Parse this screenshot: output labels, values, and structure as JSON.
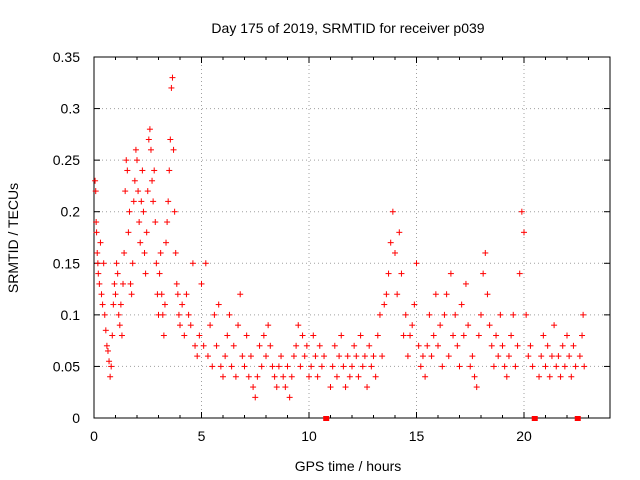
{
  "chart_data": {
    "type": "scatter",
    "title": "Day 175 of 2019, SRMTID for receiver p039",
    "xlabel": "GPS time / hours",
    "ylabel": "SRMTID / TECUs",
    "xlim": [
      0,
      24
    ],
    "ylim": [
      0,
      0.35
    ],
    "x_ticks": [
      0,
      5,
      10,
      15,
      20
    ],
    "y_ticks": [
      0,
      0.05,
      0.1,
      0.15,
      0.2,
      0.25,
      0.3,
      0.35
    ],
    "x_tick_labels": [
      "0",
      "5",
      "10",
      "15",
      "20"
    ],
    "y_tick_labels": [
      "0",
      "0.05",
      "0.1",
      "0.15",
      "0.2",
      "0.25",
      "0.3",
      "0.35"
    ],
    "grid": true,
    "marker": "plus",
    "series_color": "#ff0000",
    "gap_markers_x": [
      10.8,
      20.5,
      22.5
    ],
    "series": [
      {
        "name": "SRMTID",
        "points": [
          [
            0.05,
            0.23
          ],
          [
            0.08,
            0.22
          ],
          [
            0.1,
            0.19
          ],
          [
            0.12,
            0.18
          ],
          [
            0.15,
            0.16
          ],
          [
            0.18,
            0.15
          ],
          [
            0.2,
            0.14
          ],
          [
            0.25,
            0.13
          ],
          [
            0.3,
            0.17
          ],
          [
            0.35,
            0.12
          ],
          [
            0.4,
            0.11
          ],
          [
            0.45,
            0.15
          ],
          [
            0.5,
            0.1
          ],
          [
            0.55,
            0.085
          ],
          [
            0.6,
            0.07
          ],
          [
            0.65,
            0.065
          ],
          [
            0.7,
            0.055
          ],
          [
            0.75,
            0.04
          ],
          [
            0.8,
            0.05
          ],
          [
            0.85,
            0.08
          ],
          [
            0.9,
            0.11
          ],
          [
            0.95,
            0.13
          ],
          [
            1.0,
            0.12
          ],
          [
            1.05,
            0.15
          ],
          [
            1.1,
            0.14
          ],
          [
            1.15,
            0.1
          ],
          [
            1.2,
            0.09
          ],
          [
            1.25,
            0.11
          ],
          [
            1.3,
            0.08
          ],
          [
            1.35,
            0.13
          ],
          [
            1.4,
            0.16
          ],
          [
            1.45,
            0.22
          ],
          [
            1.5,
            0.25
          ],
          [
            1.55,
            0.24
          ],
          [
            1.6,
            0.18
          ],
          [
            1.65,
            0.2
          ],
          [
            1.7,
            0.13
          ],
          [
            1.75,
            0.12
          ],
          [
            1.8,
            0.15
          ],
          [
            1.85,
            0.21
          ],
          [
            1.9,
            0.23
          ],
          [
            1.95,
            0.26
          ],
          [
            2.0,
            0.25
          ],
          [
            2.05,
            0.22
          ],
          [
            2.1,
            0.19
          ],
          [
            2.15,
            0.17
          ],
          [
            2.2,
            0.21
          ],
          [
            2.25,
            0.24
          ],
          [
            2.3,
            0.2
          ],
          [
            2.35,
            0.16
          ],
          [
            2.4,
            0.14
          ],
          [
            2.45,
            0.18
          ],
          [
            2.5,
            0.22
          ],
          [
            2.55,
            0.27
          ],
          [
            2.6,
            0.28
          ],
          [
            2.65,
            0.26
          ],
          [
            2.7,
            0.23
          ],
          [
            2.75,
            0.21
          ],
          [
            2.8,
            0.24
          ],
          [
            2.85,
            0.19
          ],
          [
            2.9,
            0.15
          ],
          [
            2.95,
            0.12
          ],
          [
            3.0,
            0.1
          ],
          [
            3.05,
            0.14
          ],
          [
            3.1,
            0.16
          ],
          [
            3.15,
            0.12
          ],
          [
            3.2,
            0.1
          ],
          [
            3.25,
            0.08
          ],
          [
            3.3,
            0.11
          ],
          [
            3.35,
            0.17
          ],
          [
            3.4,
            0.19
          ],
          [
            3.45,
            0.21
          ],
          [
            3.5,
            0.24
          ],
          [
            3.55,
            0.27
          ],
          [
            3.6,
            0.32
          ],
          [
            3.65,
            0.33
          ],
          [
            3.7,
            0.26
          ],
          [
            3.75,
            0.2
          ],
          [
            3.8,
            0.16
          ],
          [
            3.85,
            0.13
          ],
          [
            3.9,
            0.12
          ],
          [
            3.95,
            0.1
          ],
          [
            4.0,
            0.09
          ],
          [
            4.1,
            0.11
          ],
          [
            4.2,
            0.08
          ],
          [
            4.3,
            0.12
          ],
          [
            4.4,
            0.1
          ],
          [
            4.5,
            0.09
          ],
          [
            4.6,
            0.15
          ],
          [
            4.7,
            0.07
          ],
          [
            4.8,
            0.06
          ],
          [
            4.9,
            0.08
          ],
          [
            5.0,
            0.13
          ],
          [
            5.1,
            0.07
          ],
          [
            5.2,
            0.15
          ],
          [
            5.3,
            0.06
          ],
          [
            5.4,
            0.09
          ],
          [
            5.5,
            0.05
          ],
          [
            5.6,
            0.1
          ],
          [
            5.7,
            0.07
          ],
          [
            5.8,
            0.11
          ],
          [
            5.9,
            0.05
          ],
          [
            6.0,
            0.04
          ],
          [
            6.1,
            0.06
          ],
          [
            6.2,
            0.08
          ],
          [
            6.3,
            0.1
          ],
          [
            6.4,
            0.05
          ],
          [
            6.5,
            0.07
          ],
          [
            6.6,
            0.04
          ],
          [
            6.7,
            0.09
          ],
          [
            6.8,
            0.12
          ],
          [
            6.9,
            0.06
          ],
          [
            7.0,
            0.05
          ],
          [
            7.1,
            0.08
          ],
          [
            7.2,
            0.04
          ],
          [
            7.3,
            0.06
          ],
          [
            7.4,
            0.03
          ],
          [
            7.5,
            0.02
          ],
          [
            7.6,
            0.04
          ],
          [
            7.7,
            0.07
          ],
          [
            7.8,
            0.05
          ],
          [
            7.9,
            0.08
          ],
          [
            8.0,
            0.06
          ],
          [
            8.1,
            0.09
          ],
          [
            8.2,
            0.07
          ],
          [
            8.3,
            0.05
          ],
          [
            8.4,
            0.04
          ],
          [
            8.5,
            0.03
          ],
          [
            8.6,
            0.05
          ],
          [
            8.7,
            0.06
          ],
          [
            8.8,
            0.04
          ],
          [
            8.9,
            0.03
          ],
          [
            9.0,
            0.05
          ],
          [
            9.1,
            0.02
          ],
          [
            9.2,
            0.04
          ],
          [
            9.3,
            0.06
          ],
          [
            9.4,
            0.07
          ],
          [
            9.5,
            0.09
          ],
          [
            9.6,
            0.05
          ],
          [
            9.7,
            0.08
          ],
          [
            9.8,
            0.06
          ],
          [
            9.9,
            0.07
          ],
          [
            10.0,
            0.04
          ],
          [
            10.1,
            0.05
          ],
          [
            10.2,
            0.08
          ],
          [
            10.3,
            0.06
          ],
          [
            10.4,
            0.04
          ],
          [
            10.5,
            0.07
          ],
          [
            10.6,
            0.05
          ],
          [
            10.7,
            0.06
          ],
          [
            11.0,
            0.03
          ],
          [
            11.1,
            0.05
          ],
          [
            11.2,
            0.07
          ],
          [
            11.3,
            0.04
          ],
          [
            11.4,
            0.06
          ],
          [
            11.5,
            0.08
          ],
          [
            11.6,
            0.05
          ],
          [
            11.7,
            0.03
          ],
          [
            11.8,
            0.06
          ],
          [
            11.9,
            0.04
          ],
          [
            12.0,
            0.05
          ],
          [
            12.1,
            0.07
          ],
          [
            12.2,
            0.06
          ],
          [
            12.3,
            0.04
          ],
          [
            12.4,
            0.08
          ],
          [
            12.5,
            0.05
          ],
          [
            12.6,
            0.06
          ],
          [
            12.7,
            0.03
          ],
          [
            12.8,
            0.07
          ],
          [
            12.9,
            0.05
          ],
          [
            13.0,
            0.06
          ],
          [
            13.1,
            0.04
          ],
          [
            13.2,
            0.08
          ],
          [
            13.3,
            0.1
          ],
          [
            13.4,
            0.06
          ],
          [
            13.5,
            0.11
          ],
          [
            13.6,
            0.12
          ],
          [
            13.7,
            0.14
          ],
          [
            13.8,
            0.17
          ],
          [
            13.9,
            0.2
          ],
          [
            14.0,
            0.16
          ],
          [
            14.1,
            0.12
          ],
          [
            14.2,
            0.18
          ],
          [
            14.3,
            0.14
          ],
          [
            14.4,
            0.08
          ],
          [
            14.5,
            0.1
          ],
          [
            14.6,
            0.06
          ],
          [
            14.7,
            0.08
          ],
          [
            14.8,
            0.09
          ],
          [
            14.9,
            0.11
          ],
          [
            15.0,
            0.15
          ],
          [
            15.1,
            0.07
          ],
          [
            15.2,
            0.05
          ],
          [
            15.3,
            0.06
          ],
          [
            15.4,
            0.04
          ],
          [
            15.5,
            0.07
          ],
          [
            15.6,
            0.1
          ],
          [
            15.7,
            0.06
          ],
          [
            15.8,
            0.08
          ],
          [
            15.9,
            0.12
          ],
          [
            16.0,
            0.07
          ],
          [
            16.1,
            0.09
          ],
          [
            16.2,
            0.05
          ],
          [
            16.3,
            0.1
          ],
          [
            16.4,
            0.12
          ],
          [
            16.5,
            0.06
          ],
          [
            16.6,
            0.14
          ],
          [
            16.7,
            0.08
          ],
          [
            16.8,
            0.1
          ],
          [
            16.9,
            0.07
          ],
          [
            17.0,
            0.05
          ],
          [
            17.1,
            0.11
          ],
          [
            17.2,
            0.08
          ],
          [
            17.3,
            0.13
          ],
          [
            17.4,
            0.09
          ],
          [
            17.5,
            0.05
          ],
          [
            17.6,
            0.06
          ],
          [
            17.7,
            0.04
          ],
          [
            17.8,
            0.03
          ],
          [
            17.9,
            0.08
          ],
          [
            18.0,
            0.1
          ],
          [
            18.1,
            0.14
          ],
          [
            18.2,
            0.16
          ],
          [
            18.3,
            0.12
          ],
          [
            18.4,
            0.09
          ],
          [
            18.5,
            0.07
          ],
          [
            18.6,
            0.05
          ],
          [
            18.7,
            0.08
          ],
          [
            18.8,
            0.06
          ],
          [
            18.9,
            0.1
          ],
          [
            19.0,
            0.07
          ],
          [
            19.1,
            0.05
          ],
          [
            19.2,
            0.04
          ],
          [
            19.3,
            0.06
          ],
          [
            19.4,
            0.08
          ],
          [
            19.5,
            0.1
          ],
          [
            19.6,
            0.05
          ],
          [
            19.7,
            0.07
          ],
          [
            19.8,
            0.14
          ],
          [
            19.9,
            0.2
          ],
          [
            20.0,
            0.18
          ],
          [
            20.1,
            0.1
          ],
          [
            20.2,
            0.06
          ],
          [
            20.3,
            0.07
          ],
          [
            20.4,
            0.05
          ],
          [
            20.7,
            0.04
          ],
          [
            20.8,
            0.06
          ],
          [
            20.9,
            0.08
          ],
          [
            21.0,
            0.05
          ],
          [
            21.1,
            0.07
          ],
          [
            21.2,
            0.04
          ],
          [
            21.3,
            0.06
          ],
          [
            21.4,
            0.09
          ],
          [
            21.5,
            0.05
          ],
          [
            21.6,
            0.06
          ],
          [
            21.7,
            0.04
          ],
          [
            21.8,
            0.07
          ],
          [
            21.9,
            0.05
          ],
          [
            22.0,
            0.08
          ],
          [
            22.1,
            0.06
          ],
          [
            22.2,
            0.04
          ],
          [
            22.3,
            0.07
          ],
          [
            22.4,
            0.05
          ],
          [
            22.6,
            0.06
          ],
          [
            22.7,
            0.08
          ],
          [
            22.75,
            0.1
          ],
          [
            22.8,
            0.05
          ]
        ]
      }
    ]
  }
}
